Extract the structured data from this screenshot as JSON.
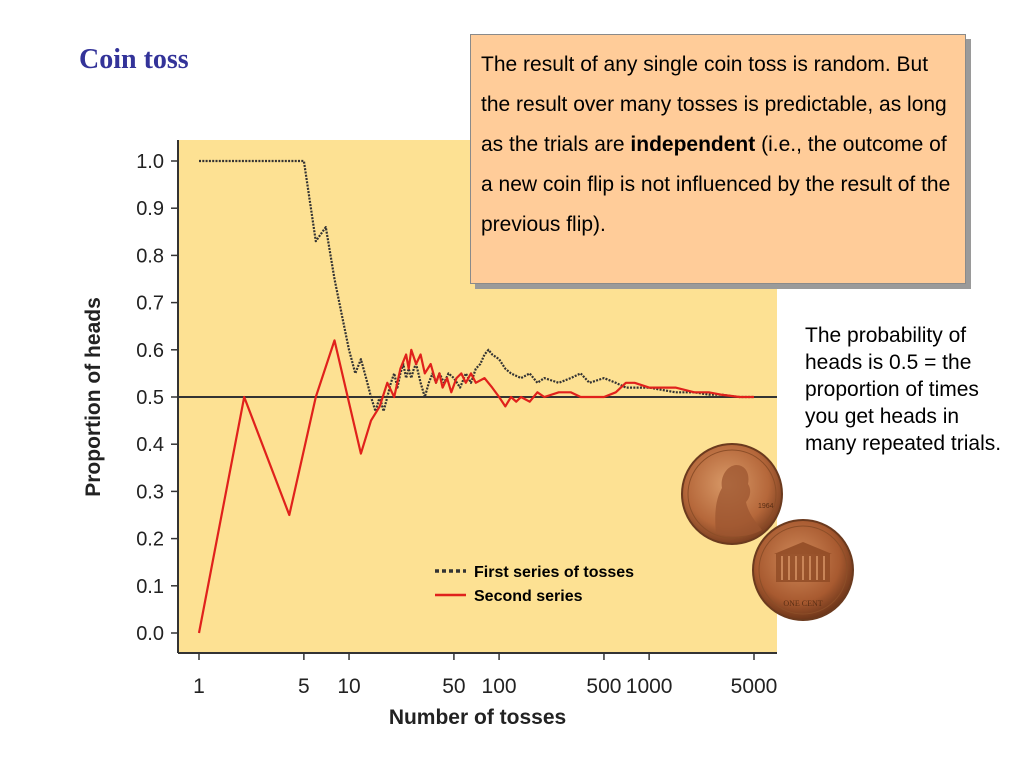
{
  "slide": {
    "title": "Coin toss",
    "callout": {
      "before": "The result of any single coin toss is random.  But the result over many tosses is predictable, as long as the trials are ",
      "bold": "independent",
      "after": " (i.e., the outcome of a new coin flip is not influenced by the result of the previous flip)."
    },
    "side_note": "The probability of heads is 0.5 = the proportion of times you get heads in many repeated trials."
  },
  "coins": {
    "penny_front_text": "1964",
    "penny_back_text": "ONE CENT"
  },
  "colors": {
    "plot_background": "#fde193",
    "series1": "#333333",
    "series2": "#e0211c",
    "title": "#333399",
    "callout_fill": "#ffcc99"
  },
  "chart_data": {
    "type": "line",
    "xlabel": "Number of tosses",
    "ylabel": "Proportion of  heads",
    "x_scale": "log",
    "xlim": [
      1,
      5000
    ],
    "ylim": [
      0,
      1
    ],
    "x_ticks": [
      1,
      5,
      10,
      50,
      100,
      500,
      1000,
      5000
    ],
    "x_tick_labels": [
      "1",
      "5",
      "10",
      "50",
      "100",
      "500",
      "1000",
      "5000"
    ],
    "y_ticks": [
      0,
      0.1,
      0.2,
      0.3,
      0.4,
      0.5,
      0.6,
      0.7,
      0.8,
      0.9,
      1.0
    ],
    "y_tick_labels": [
      "0.0",
      "0.1",
      "0.2",
      "0.3",
      "0.4",
      "0.5",
      "0.6",
      "0.7",
      "0.8",
      "0.9",
      "1.0"
    ],
    "reference_line": 0.5,
    "legend_position": "bottom-right",
    "series": [
      {
        "name": "First series of tosses",
        "style": "dotted",
        "color": "#333333",
        "points": [
          [
            1,
            1.0
          ],
          [
            2,
            1.0
          ],
          [
            3,
            1.0
          ],
          [
            4,
            1.0
          ],
          [
            5,
            1.0
          ],
          [
            6,
            0.83
          ],
          [
            7,
            0.86
          ],
          [
            8,
            0.75
          ],
          [
            9,
            0.67
          ],
          [
            10,
            0.6
          ],
          [
            11,
            0.55
          ],
          [
            12,
            0.58
          ],
          [
            13,
            0.54
          ],
          [
            14,
            0.5
          ],
          [
            15,
            0.47
          ],
          [
            16,
            0.5
          ],
          [
            17,
            0.47
          ],
          [
            18,
            0.5
          ],
          [
            19,
            0.53
          ],
          [
            20,
            0.55
          ],
          [
            21,
            0.52
          ],
          [
            22,
            0.55
          ],
          [
            23,
            0.57
          ],
          [
            24,
            0.54
          ],
          [
            25,
            0.56
          ],
          [
            26,
            0.54
          ],
          [
            27,
            0.56
          ],
          [
            28,
            0.57
          ],
          [
            29,
            0.55
          ],
          [
            30,
            0.53
          ],
          [
            32,
            0.5
          ],
          [
            34,
            0.53
          ],
          [
            36,
            0.55
          ],
          [
            38,
            0.53
          ],
          [
            40,
            0.55
          ],
          [
            43,
            0.53
          ],
          [
            46,
            0.55
          ],
          [
            50,
            0.54
          ],
          [
            55,
            0.52
          ],
          [
            60,
            0.55
          ],
          [
            65,
            0.53
          ],
          [
            70,
            0.56
          ],
          [
            75,
            0.57
          ],
          [
            80,
            0.59
          ],
          [
            85,
            0.6
          ],
          [
            90,
            0.59
          ],
          [
            100,
            0.58
          ],
          [
            110,
            0.56
          ],
          [
            120,
            0.55
          ],
          [
            140,
            0.54
          ],
          [
            160,
            0.55
          ],
          [
            180,
            0.53
          ],
          [
            200,
            0.54
          ],
          [
            250,
            0.53
          ],
          [
            300,
            0.54
          ],
          [
            350,
            0.55
          ],
          [
            400,
            0.53
          ],
          [
            500,
            0.54
          ],
          [
            600,
            0.53
          ],
          [
            700,
            0.52
          ],
          [
            800,
            0.52
          ],
          [
            1000,
            0.52
          ],
          [
            1500,
            0.51
          ],
          [
            2000,
            0.51
          ],
          [
            2500,
            0.505
          ],
          [
            3000,
            0.505
          ],
          [
            4000,
            0.5
          ],
          [
            5000,
            0.5
          ]
        ]
      },
      {
        "name": "Second series",
        "style": "solid",
        "color": "#e0211c",
        "points": [
          [
            1,
            0.0
          ],
          [
            2,
            0.5
          ],
          [
            4,
            0.25
          ],
          [
            6,
            0.5
          ],
          [
            8,
            0.62
          ],
          [
            12,
            0.38
          ],
          [
            14,
            0.45
          ],
          [
            16,
            0.48
          ],
          [
            18,
            0.53
          ],
          [
            20,
            0.5
          ],
          [
            22,
            0.56
          ],
          [
            24,
            0.59
          ],
          [
            25,
            0.56
          ],
          [
            26,
            0.6
          ],
          [
            28,
            0.57
          ],
          [
            30,
            0.59
          ],
          [
            32,
            0.55
          ],
          [
            35,
            0.57
          ],
          [
            38,
            0.53
          ],
          [
            40,
            0.55
          ],
          [
            42,
            0.52
          ],
          [
            45,
            0.54
          ],
          [
            48,
            0.51
          ],
          [
            52,
            0.54
          ],
          [
            56,
            0.55
          ],
          [
            60,
            0.53
          ],
          [
            65,
            0.55
          ],
          [
            70,
            0.53
          ],
          [
            80,
            0.54
          ],
          [
            90,
            0.52
          ],
          [
            100,
            0.5
          ],
          [
            110,
            0.48
          ],
          [
            120,
            0.5
          ],
          [
            130,
            0.49
          ],
          [
            140,
            0.5
          ],
          [
            160,
            0.49
          ],
          [
            180,
            0.51
          ],
          [
            200,
            0.5
          ],
          [
            250,
            0.51
          ],
          [
            300,
            0.51
          ],
          [
            350,
            0.5
          ],
          [
            400,
            0.5
          ],
          [
            500,
            0.5
          ],
          [
            600,
            0.51
          ],
          [
            700,
            0.53
          ],
          [
            800,
            0.53
          ],
          [
            1000,
            0.52
          ],
          [
            1200,
            0.52
          ],
          [
            1500,
            0.52
          ],
          [
            2000,
            0.51
          ],
          [
            2500,
            0.51
          ],
          [
            3000,
            0.505
          ],
          [
            4000,
            0.5
          ],
          [
            5000,
            0.5
          ]
        ]
      }
    ]
  }
}
